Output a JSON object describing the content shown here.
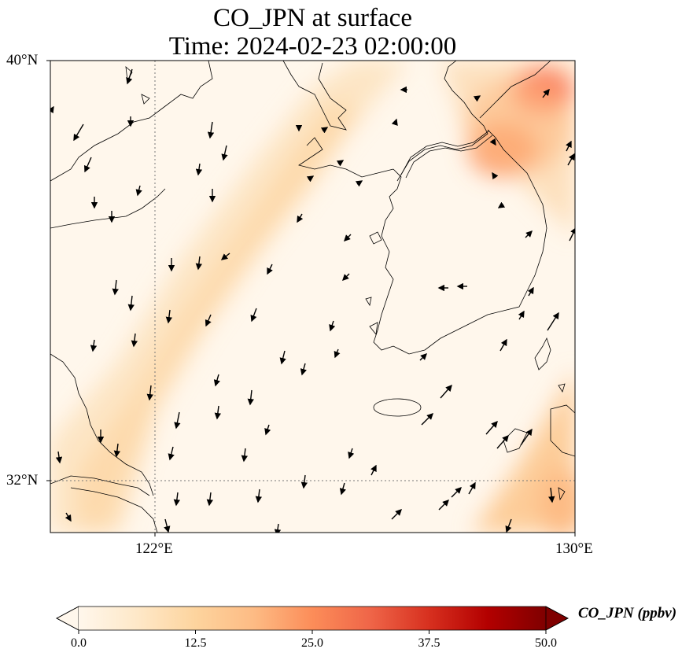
{
  "title": {
    "line1": "CO_JPN at surface",
    "line2": "Time: 2024-02-23 02:00:00"
  },
  "axes": {
    "y_ticks": [
      {
        "label": "40°N",
        "lat": 40
      },
      {
        "label": "32°N",
        "lat": 32
      }
    ],
    "x_ticks": [
      {
        "label": "122°E",
        "lon": 122
      },
      {
        "label": "130°E",
        "lon": 130
      }
    ],
    "extent": {
      "lon_min": 120,
      "lon_max": 130,
      "lat_min": 31,
      "lat_max": 40
    },
    "gridlines": "dotted at 122°E and 32°N"
  },
  "colorbar": {
    "label": "CO_JPN (ppbv)",
    "ticks": [
      "0.0",
      "12.5",
      "25.0",
      "37.5",
      "50.0"
    ],
    "range": [
      0,
      50
    ],
    "extend": "both",
    "colormap": "OrRd-like",
    "stops": [
      "#fff7ec",
      "#fee8c8",
      "#fdd49e",
      "#fdbb84",
      "#fc8d59",
      "#ef6548",
      "#d7301f",
      "#b30000",
      "#7f0000"
    ]
  },
  "colors": {
    "coast": "#000000",
    "grid": "#777777",
    "arrow": "#000000"
  }
}
